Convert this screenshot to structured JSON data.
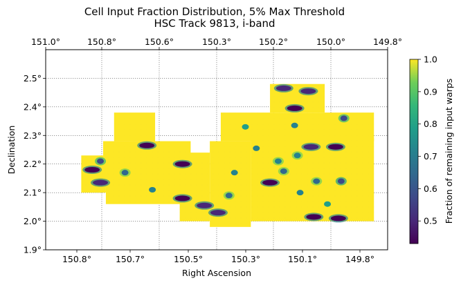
{
  "chart_data": {
    "type": "heatmap",
    "title": "Cell Input Fraction Distribution, 5% Max Threshold",
    "subtitle": "HSC Track 9813, i-band",
    "xlabel": "Right Ascension",
    "ylabel": "Declination",
    "colorbar_label": "Fraction of remaining input warps",
    "colormap": "viridis",
    "value_range": [
      0.43,
      1.0
    ],
    "grid": true,
    "x_axis_inverted": true,
    "x_ticks_bottom": [
      "150.8°",
      "150.7°",
      "150.5°",
      "150.3°",
      "150.1°",
      "149.8°"
    ],
    "x_ticks_top": [
      "151.0°",
      "150.8°",
      "150.6°",
      "150.3°",
      "150.2°",
      "150.0°",
      "149.8°"
    ],
    "y_ticks": [
      "1.9°",
      "2.0°",
      "2.1°",
      "2.2°",
      "2.3°",
      "2.4°",
      "2.5°"
    ],
    "y_range": [
      1.9,
      2.6
    ],
    "colorbar_ticks": [
      "0.5",
      "0.6",
      "0.7",
      "0.8",
      "0.9",
      "1.0"
    ],
    "regions": [
      {
        "ra": [
          150.82,
          150.73
        ],
        "dec": [
          2.1,
          2.23
        ],
        "value": 1.0
      },
      {
        "ra": [
          150.74,
          150.42
        ],
        "dec": [
          2.12,
          2.28
        ],
        "value": 1.0
      },
      {
        "ra": [
          150.7,
          150.55
        ],
        "dec": [
          2.28,
          2.38
        ],
        "value": 1.0
      },
      {
        "ra": [
          150.73,
          150.43
        ],
        "dec": [
          2.06,
          2.13
        ],
        "value": 1.0
      },
      {
        "ra": [
          150.46,
          150.35
        ],
        "dec": [
          2.0,
          2.24
        ],
        "value": 1.0
      },
      {
        "ra": [
          150.35,
          150.2
        ],
        "dec": [
          1.98,
          2.28
        ],
        "value": 1.0
      },
      {
        "ra": [
          150.31,
          149.75
        ],
        "dec": [
          2.28,
          2.38
        ],
        "value": 1.0
      },
      {
        "ra": [
          150.2,
          149.75
        ],
        "dec": [
          2.0,
          2.29
        ],
        "value": 1.0
      },
      {
        "ra": [
          150.13,
          149.93
        ],
        "dec": [
          2.38,
          2.48
        ],
        "value": 1.0
      }
    ],
    "features": [
      {
        "ra": 150.78,
        "dec": 2.18,
        "value": 0.45
      },
      {
        "ra": 150.75,
        "dec": 2.135,
        "value": 0.5
      },
      {
        "ra": 150.75,
        "dec": 2.21,
        "value": 0.6
      },
      {
        "ra": 150.66,
        "dec": 2.17,
        "value": 0.65
      },
      {
        "ra": 150.58,
        "dec": 2.265,
        "value": 0.45
      },
      {
        "ra": 150.56,
        "dec": 2.11,
        "value": 0.75
      },
      {
        "ra": 150.45,
        "dec": 2.2,
        "value": 0.45
      },
      {
        "ra": 150.45,
        "dec": 2.08,
        "value": 0.45
      },
      {
        "ra": 150.37,
        "dec": 2.055,
        "value": 0.5
      },
      {
        "ra": 150.32,
        "dec": 2.03,
        "value": 0.5
      },
      {
        "ra": 150.28,
        "dec": 2.09,
        "value": 0.65
      },
      {
        "ra": 150.26,
        "dec": 2.17,
        "value": 0.75
      },
      {
        "ra": 150.22,
        "dec": 2.33,
        "value": 0.8
      },
      {
        "ra": 150.13,
        "dec": 2.135,
        "value": 0.45
      },
      {
        "ra": 150.08,
        "dec": 2.175,
        "value": 0.65
      },
      {
        "ra": 150.1,
        "dec": 2.21,
        "value": 0.7
      },
      {
        "ra": 150.04,
        "dec": 2.335,
        "value": 0.75
      },
      {
        "ra": 150.08,
        "dec": 2.465,
        "value": 0.5
      },
      {
        "ra": 149.99,
        "dec": 2.455,
        "value": 0.5
      },
      {
        "ra": 150.04,
        "dec": 2.395,
        "value": 0.45
      },
      {
        "ra": 149.98,
        "dec": 2.26,
        "value": 0.5
      },
      {
        "ra": 149.89,
        "dec": 2.26,
        "value": 0.45
      },
      {
        "ra": 149.86,
        "dec": 2.36,
        "value": 0.6
      },
      {
        "ra": 149.96,
        "dec": 2.14,
        "value": 0.65
      },
      {
        "ra": 149.87,
        "dec": 2.14,
        "value": 0.55
      },
      {
        "ra": 150.02,
        "dec": 2.1,
        "value": 0.75
      },
      {
        "ra": 149.97,
        "dec": 2.015,
        "value": 0.45
      },
      {
        "ra": 149.88,
        "dec": 2.01,
        "value": 0.45
      },
      {
        "ra": 149.92,
        "dec": 2.06,
        "value": 0.8
      },
      {
        "ra": 150.18,
        "dec": 2.255,
        "value": 0.75
      },
      {
        "ra": 150.03,
        "dec": 2.23,
        "value": 0.7
      }
    ]
  }
}
